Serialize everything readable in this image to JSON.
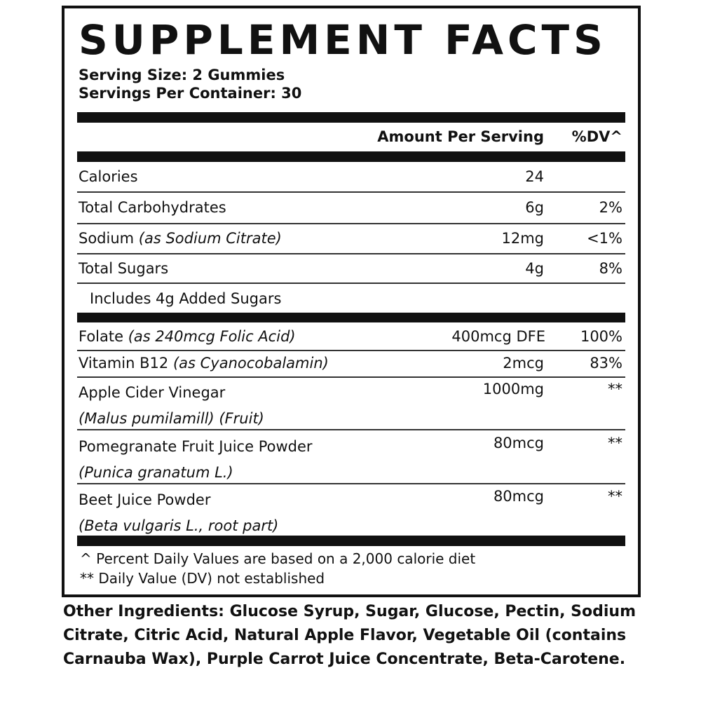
{
  "title": "SUPPLEMENT FACTS",
  "serving_size": "Serving Size: 2 Gummies",
  "servings_per_container": "Servings Per Container: 30",
  "header": {
    "amount": "Amount Per Serving",
    "dv": "%DV^"
  },
  "rows": [
    {
      "name": "Calories",
      "detail": "",
      "amount": "24",
      "dv": ""
    },
    {
      "name": "Total Carbohydrates",
      "detail": "",
      "amount": "6g",
      "dv": "2%"
    },
    {
      "name": "Sodium",
      "detail": "(as Sodium Citrate)",
      "amount": "12mg",
      "dv": "<1%"
    },
    {
      "name": "Total Sugars",
      "detail": "",
      "amount": "4g",
      "dv": "8%"
    },
    {
      "name": "Includes 4g Added Sugars",
      "detail": "",
      "amount": "",
      "dv": ""
    },
    {
      "name": "Folate",
      "detail": "(as 240mcg Folic Acid)",
      "amount": "400mcg DFE",
      "dv": "100%"
    },
    {
      "name": "Vitamin B12",
      "detail": "(as Cyanocobalamin)",
      "amount": "2mcg",
      "dv": "83%"
    },
    {
      "name": "Apple Cider Vinegar",
      "detail": "(Malus pumilamill) (Fruit)",
      "amount": "1000mg",
      "dv": "**"
    },
    {
      "name": "Pomegranate Fruit Juice Powder",
      "detail": "(Punica granatum L.)",
      "amount": "80mcg",
      "dv": "**"
    },
    {
      "name": "Beet Juice Powder",
      "detail": "(Beta vulgaris L., root part)",
      "amount": "80mcg",
      "dv": "**"
    }
  ],
  "footnotes": [
    "^ Percent Daily Values are based on a 2,000 calorie diet",
    "** Daily Value (DV) not established"
  ],
  "other_ingredients": {
    "label": "Other Ingredients:",
    "text": " Glucose Syrup, Sugar, Glucose, Pectin, Sodium Citrate, Citric Acid, Natural Apple Flavor, Vegetable Oil (contains Carnauba Wax), Purple Carrot Juice Concentrate, Beta-Carotene."
  }
}
